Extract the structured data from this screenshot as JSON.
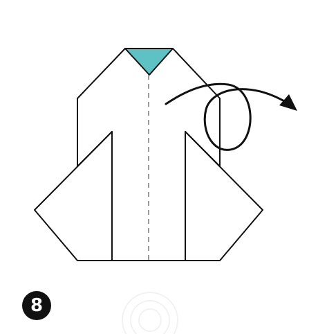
{
  "step": {
    "number": "8"
  },
  "colors": {
    "paper": "#ffffff",
    "accent": "#5ec2c4",
    "outline": "#111111",
    "fold_line": "#9a9a9a",
    "watermark": "#e6e6e6"
  },
  "icons": {
    "arrow": "curved-loop-arrow-icon",
    "watermark": "watermark-logo-icon"
  }
}
